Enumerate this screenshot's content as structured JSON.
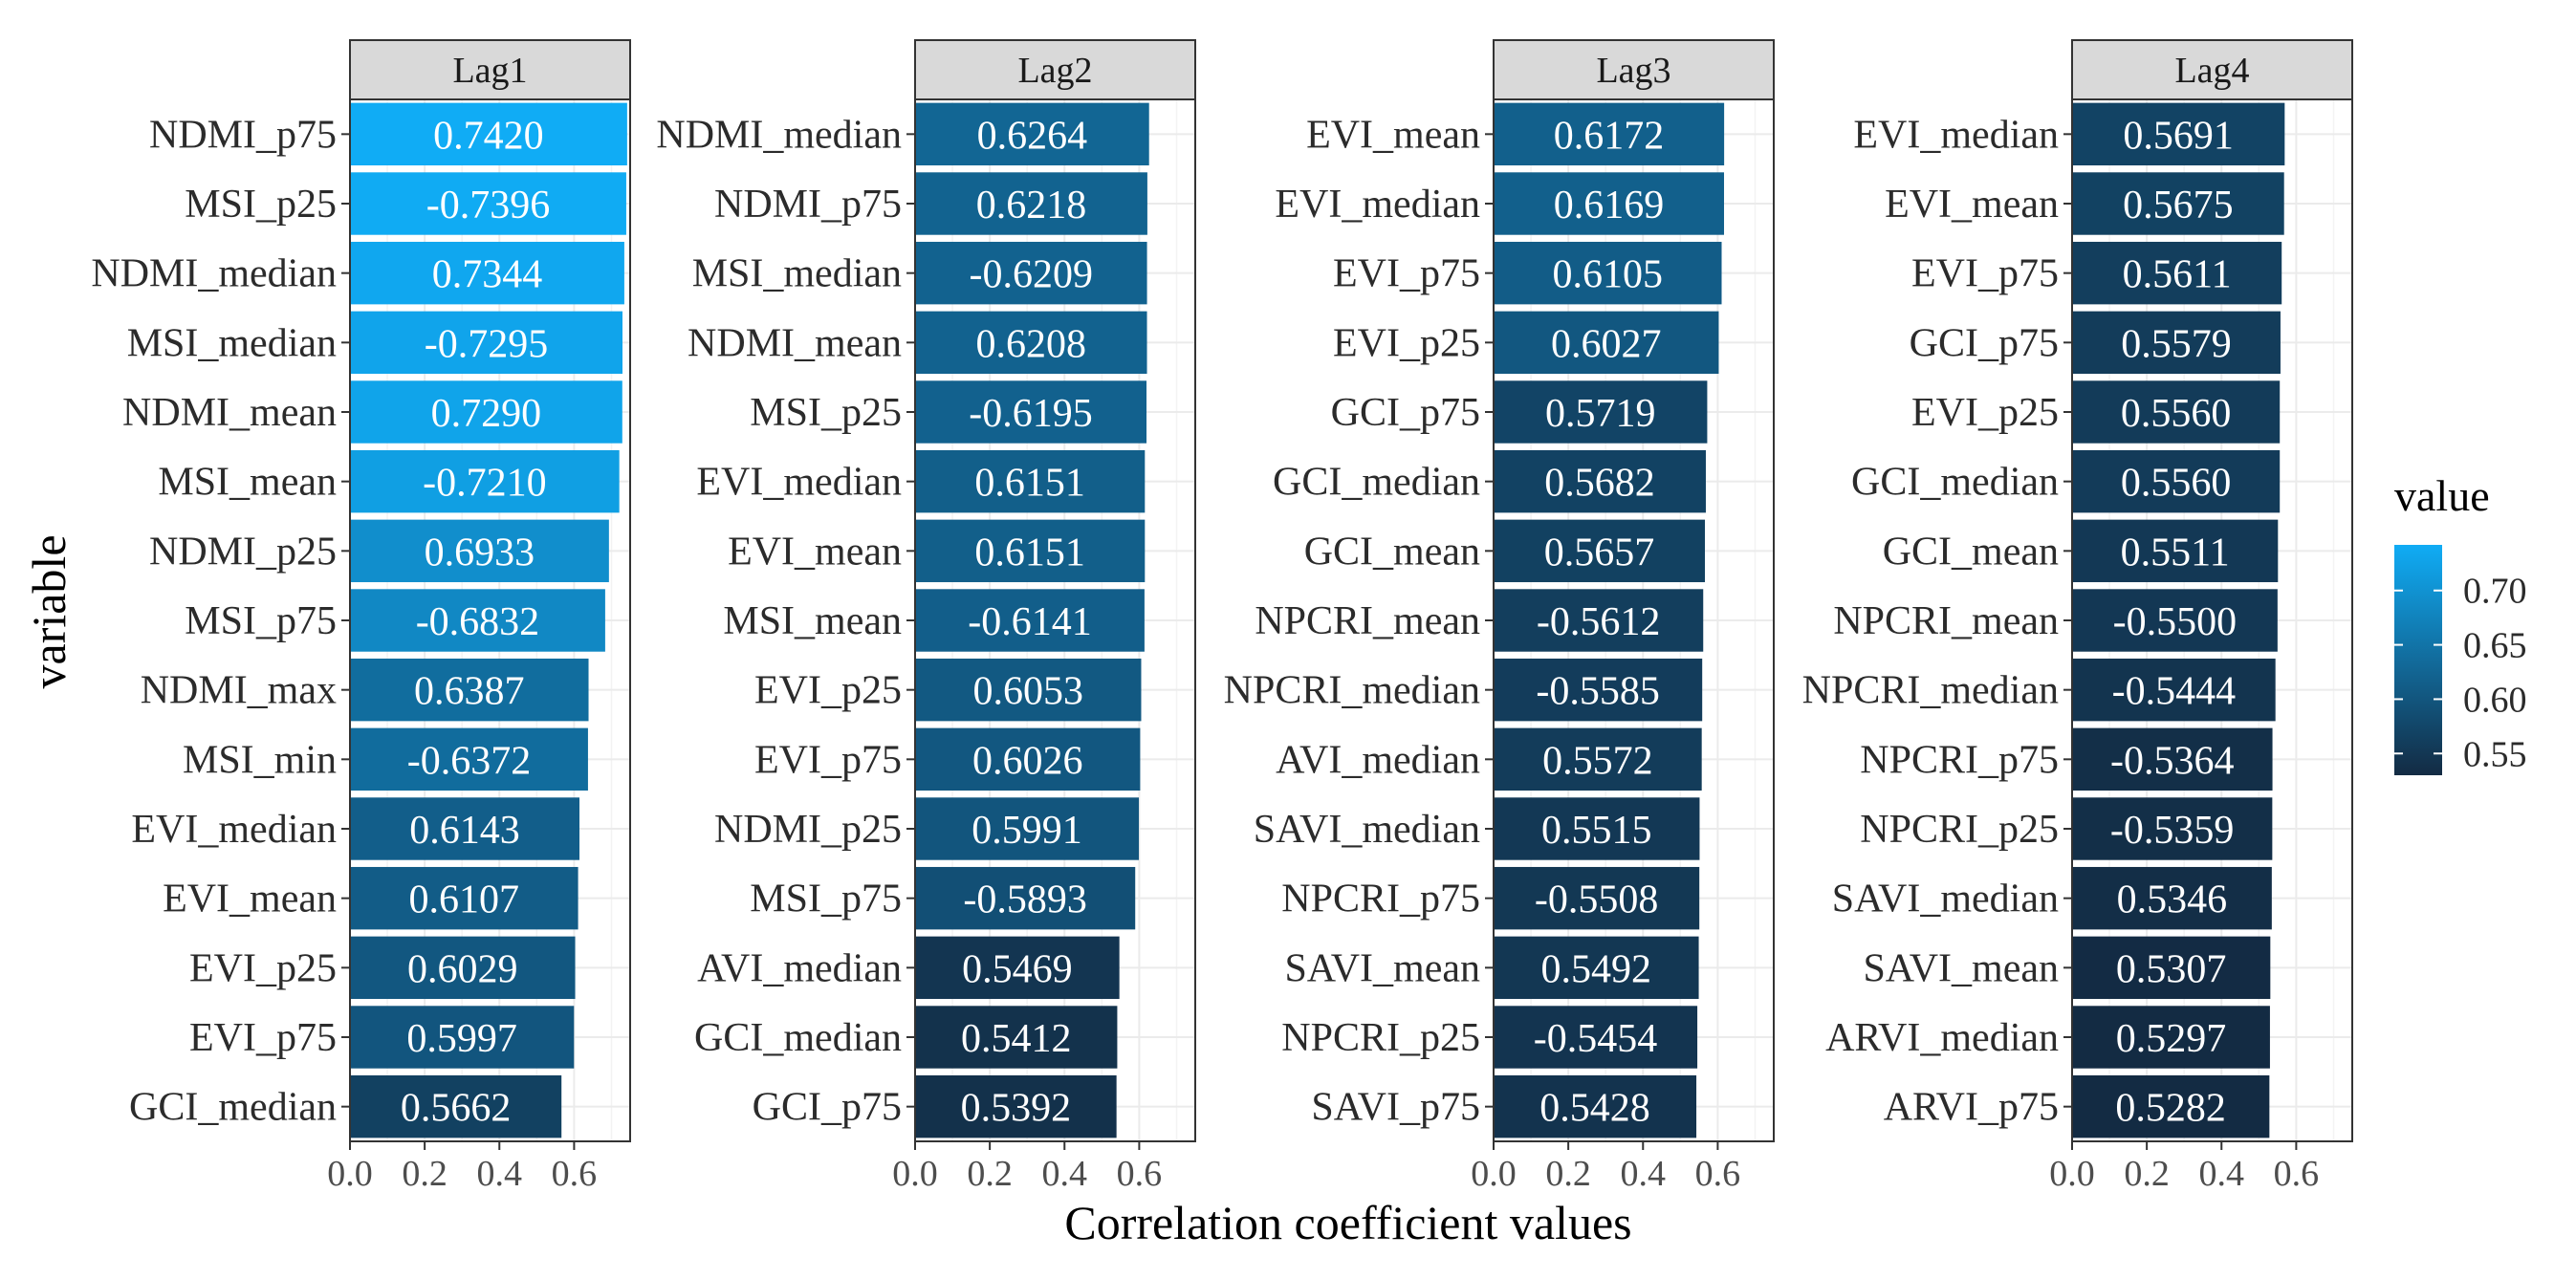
{
  "chart_data": {
    "type": "bar",
    "orientation": "horizontal",
    "xlabel": "Correlation coefficient values",
    "ylabel": "variable",
    "xlim": [
      0,
      0.75
    ],
    "xticks": [
      "0.0",
      "0.2",
      "0.4",
      "0.6"
    ],
    "xtick_values": [
      0,
      0.2,
      0.4,
      0.6
    ],
    "grid": true,
    "legend": {
      "title": "value",
      "placement": "right",
      "range": [
        0.53,
        0.742
      ],
      "ticks": [
        "0.70",
        "0.65",
        "0.60",
        "0.55"
      ],
      "tick_values": [
        0.7,
        0.65,
        0.6,
        0.55
      ],
      "low_color": "#132B43",
      "high_color": "#10ACF5"
    },
    "panels": [
      {
        "title": "Lag1",
        "categories": [
          "NDMI_p75",
          "MSI_p25",
          "NDMI_median",
          "MSI_median",
          "NDMI_mean",
          "MSI_mean",
          "NDMI_p25",
          "MSI_p75",
          "NDMI_max",
          "MSI_min",
          "EVI_median",
          "EVI_mean",
          "EVI_p25",
          "EVI_p75",
          "GCI_median"
        ],
        "values": [
          0.742,
          0.7396,
          0.7344,
          0.7295,
          0.729,
          0.721,
          0.6933,
          0.6832,
          0.6387,
          0.6372,
          0.6143,
          0.6107,
          0.6029,
          0.5997,
          0.5662
        ],
        "labels": [
          "0.7420",
          "-0.7396",
          "0.7344",
          "-0.7295",
          "0.7290",
          "-0.7210",
          "0.6933",
          "-0.6832",
          "0.6387",
          "-0.6372",
          "0.6143",
          "0.6107",
          "0.6029",
          "0.5997",
          "0.5662"
        ]
      },
      {
        "title": "Lag2",
        "categories": [
          "NDMI_median",
          "NDMI_p75",
          "MSI_median",
          "NDMI_mean",
          "MSI_p25",
          "EVI_median",
          "EVI_mean",
          "MSI_mean",
          "EVI_p25",
          "EVI_p75",
          "NDMI_p25",
          "MSI_p75",
          "AVI_median",
          "GCI_median",
          "GCI_p75"
        ],
        "values": [
          0.6264,
          0.6218,
          0.6209,
          0.6208,
          0.6195,
          0.6151,
          0.6151,
          0.6141,
          0.6053,
          0.6026,
          0.5991,
          0.5893,
          0.5469,
          0.5412,
          0.5392
        ],
        "labels": [
          "0.6264",
          "0.6218",
          "-0.6209",
          "0.6208",
          "-0.6195",
          "0.6151",
          "0.6151",
          "-0.6141",
          "0.6053",
          "0.6026",
          "0.5991",
          "-0.5893",
          "0.5469",
          "0.5412",
          "0.5392"
        ]
      },
      {
        "title": "Lag3",
        "categories": [
          "EVI_mean",
          "EVI_median",
          "EVI_p75",
          "EVI_p25",
          "GCI_p75",
          "GCI_median",
          "GCI_mean",
          "NPCRI_mean",
          "NPCRI_median",
          "AVI_median",
          "SAVI_median",
          "NPCRI_p75",
          "SAVI_mean",
          "NPCRI_p25",
          "SAVI_p75"
        ],
        "values": [
          0.6172,
          0.6169,
          0.6105,
          0.6027,
          0.5719,
          0.5682,
          0.5657,
          0.5612,
          0.5585,
          0.5572,
          0.5515,
          0.5508,
          0.5492,
          0.5454,
          0.5428
        ],
        "labels": [
          "0.6172",
          "0.6169",
          "0.6105",
          "0.6027",
          "0.5719",
          "0.5682",
          "0.5657",
          "-0.5612",
          "-0.5585",
          "0.5572",
          "0.5515",
          "-0.5508",
          "0.5492",
          "-0.5454",
          "0.5428"
        ]
      },
      {
        "title": "Lag4",
        "categories": [
          "EVI_median",
          "EVI_mean",
          "EVI_p75",
          "GCI_p75",
          "EVI_p25",
          "GCI_median",
          "GCI_mean",
          "NPCRI_mean",
          "NPCRI_median",
          "NPCRI_p75",
          "NPCRI_p25",
          "SAVI_median",
          "SAVI_mean",
          "ARVI_median",
          "ARVI_p75"
        ],
        "values": [
          0.5691,
          0.5675,
          0.5611,
          0.5579,
          0.556,
          0.556,
          0.5511,
          0.55,
          0.5444,
          0.5364,
          0.5359,
          0.5346,
          0.5307,
          0.5297,
          0.5282
        ],
        "labels": [
          "0.5691",
          "0.5675",
          "0.5611",
          "0.5579",
          "0.5560",
          "0.5560",
          "0.5511",
          "-0.5500",
          "-0.5444",
          "-0.5364",
          "-0.5359",
          "0.5346",
          "0.5307",
          "0.5297",
          "0.5282"
        ]
      }
    ]
  }
}
